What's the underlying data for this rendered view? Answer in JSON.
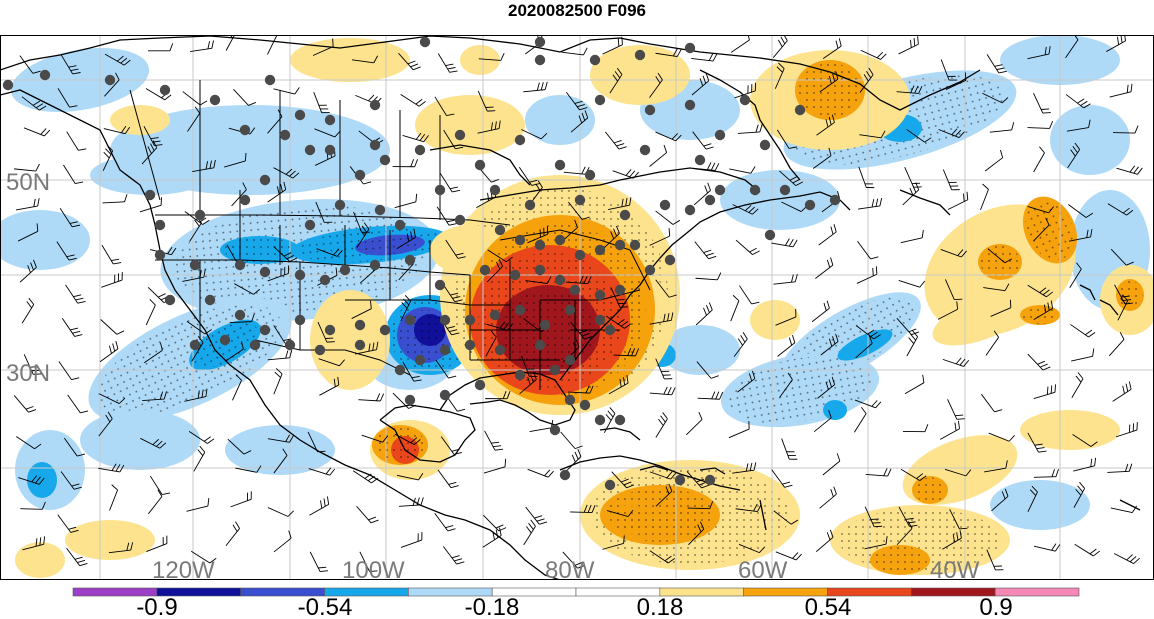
{
  "title": "2020082500 F096",
  "lat_labels": [
    "50N",
    "30N"
  ],
  "lon_labels": [
    "120W",
    "100W",
    "80W",
    "60W",
    "40W"
  ],
  "colorbar": {
    "colors": [
      "#9b3fc7",
      "#10109a",
      "#3a4fd0",
      "#17a8ec",
      "#aedaf8",
      "#ffffff",
      "#ffffff",
      "#fde38e",
      "#f5a20d",
      "#e9461b",
      "#a0161d",
      "#f589b5"
    ],
    "labels": [
      "-0.9",
      "-0.54",
      "-0.18",
      "0.18",
      "0.54",
      "0.9"
    ]
  },
  "palette": {
    "neg_light": "#aedaf8",
    "neg_mid": "#17a8ec",
    "neg_strong": "#3a4fd0",
    "neg_max": "#10109a",
    "pos_light": "#fde38e",
    "pos_mid": "#f5a20d",
    "pos_strong": "#e9461b",
    "pos_max": "#a0161d"
  }
}
